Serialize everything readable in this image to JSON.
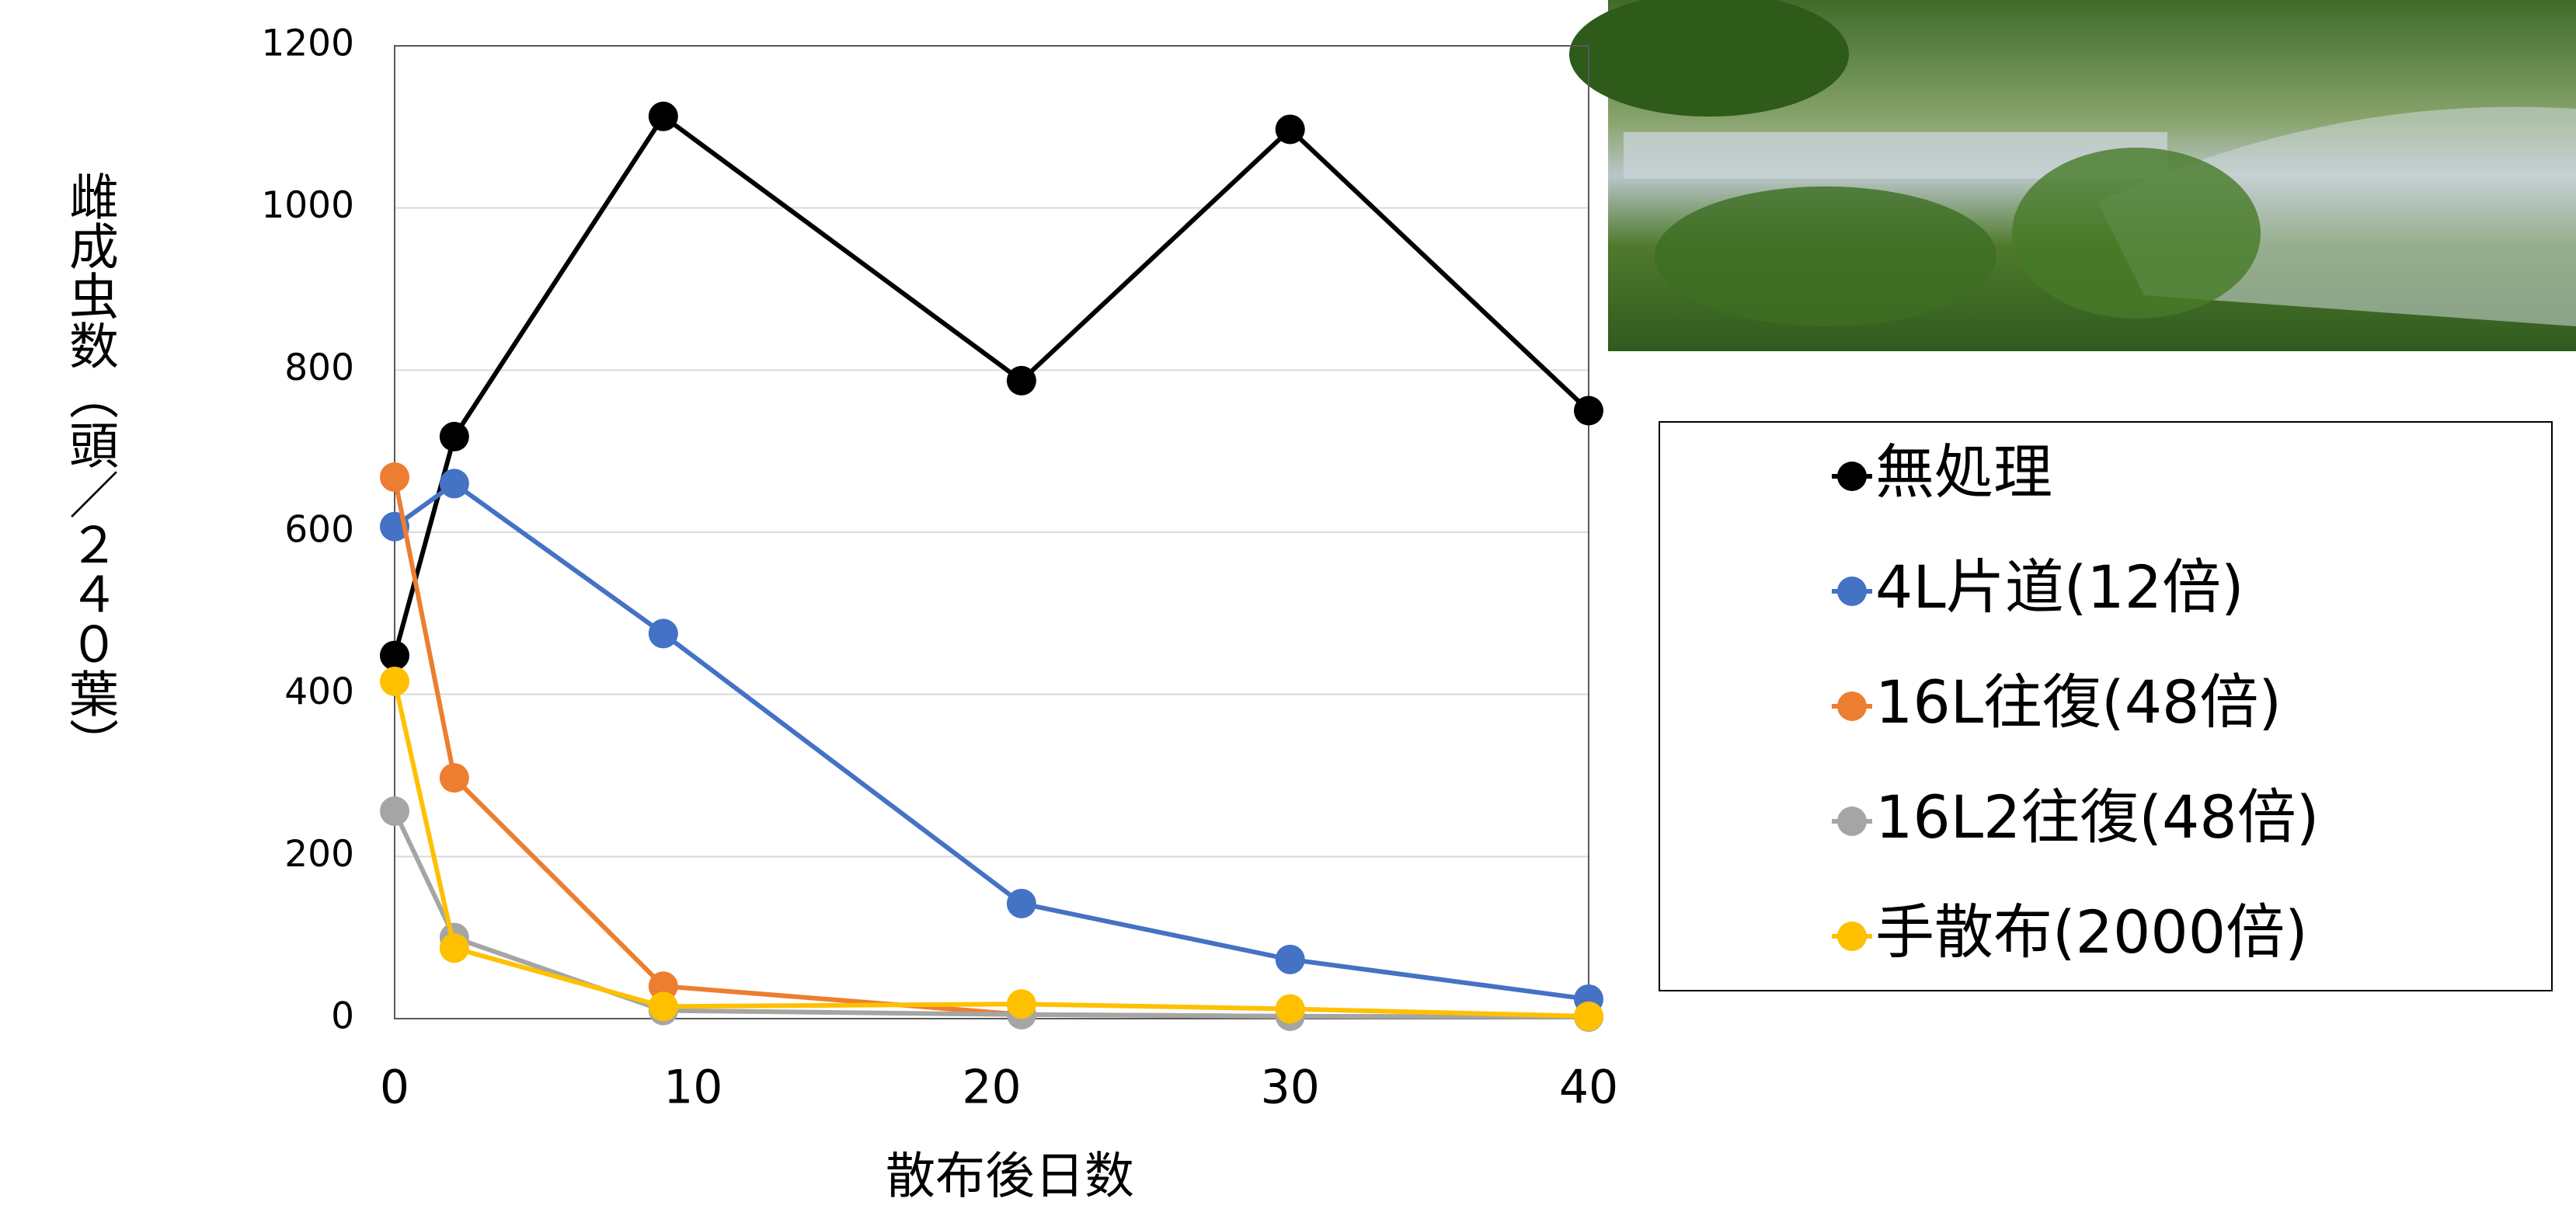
{
  "chart_data": {
    "type": "line",
    "x_label": "散布後日数",
    "y_label": "雌成虫数（頭／２４０葉）",
    "x": [
      0,
      2,
      9,
      21,
      30,
      40
    ],
    "xlim": [
      0,
      40
    ],
    "xticks": [
      0,
      10,
      20,
      30,
      40
    ],
    "ylim": [
      0,
      1200
    ],
    "yticks": [
      0,
      200,
      400,
      600,
      800,
      1000,
      1200
    ],
    "grid": true,
    "series": [
      {
        "name": "無処理",
        "color": "#000000",
        "values": [
          448,
          718,
          1113,
          787,
          1097,
          750
        ]
      },
      {
        "name": "4L片道(12倍)",
        "color": "#4472c4",
        "values": [
          607,
          660,
          475,
          142,
          73,
          24
        ]
      },
      {
        "name": "16L往復(48倍)",
        "color": "#ed7d31",
        "values": [
          668,
          297,
          40,
          5,
          3,
          2
        ]
      },
      {
        "name": "16L2往復(48倍)",
        "color": "#a5a5a5",
        "values": [
          256,
          100,
          10,
          5,
          3,
          2
        ]
      },
      {
        "name": "手散布(2000倍)",
        "color": "#ffc000",
        "values": [
          416,
          87,
          15,
          18,
          12,
          3
        ]
      }
    ]
  }
}
